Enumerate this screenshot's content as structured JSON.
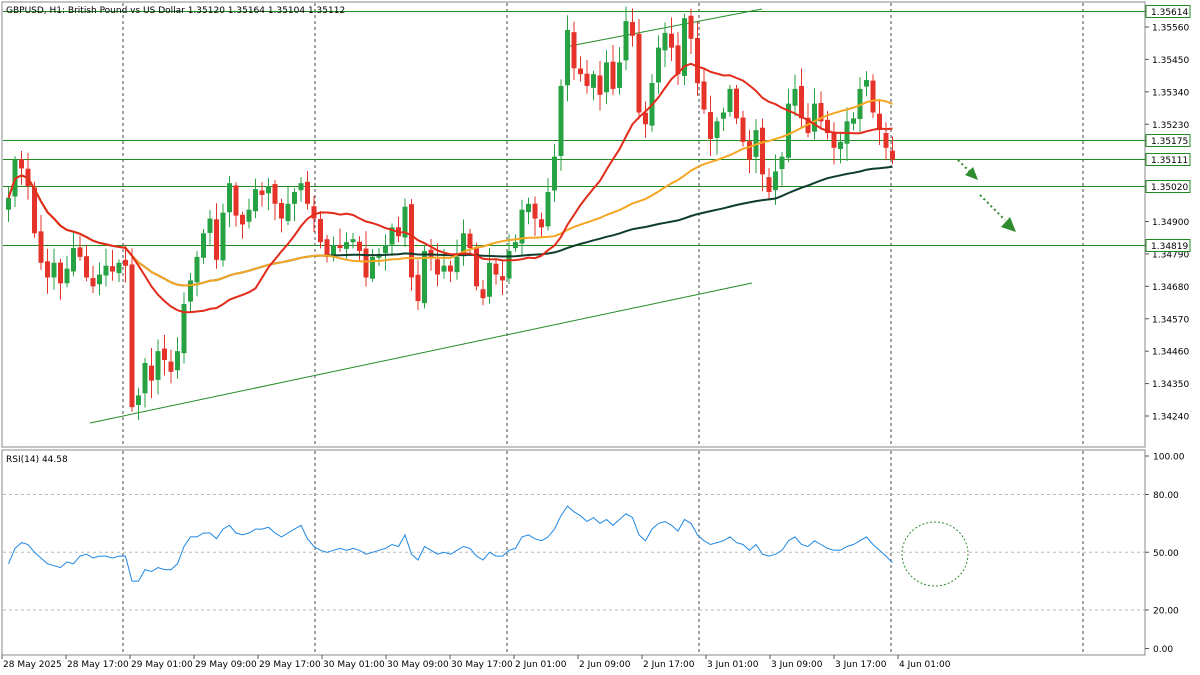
{
  "header": {
    "symbol_line": "GBPUSD, H1: British Pound vs US Dollar  1.35120 1.35164 1.35104 1.35112"
  },
  "rsi_panel": {
    "label": "RSI(14) 44.58"
  },
  "colors": {
    "bull": "#26a243",
    "bear": "#e5332a",
    "ma_fast": "#e22b1a",
    "ma_mid": "#f5a623",
    "ma_slow": "#0f3d2c",
    "rsi": "#1e88e5",
    "level_line": "#228b22",
    "grid": "#444444"
  },
  "chart_data": [
    {
      "type": "candlestick",
      "symbol": "GBPUSD",
      "timeframe": "H1",
      "y_axis_ticks": [
        "1.35560",
        "1.35450",
        "1.35340",
        "1.35230",
        "1.35010",
        "1.34900",
        "1.34790",
        "1.34680",
        "1.34570",
        "1.34460",
        "1.34350",
        "1.34240"
      ],
      "ylim": [
        1.342,
        1.3563
      ],
      "x_axis_labels": [
        "28 May 2025",
        "28 May 17:00",
        "29 May 01:00",
        "29 May 09:00",
        "29 May 17:00",
        "30 May 01:00",
        "30 May 09:00",
        "30 May 17:00",
        "2 Jun 01:00",
        "2 Jun 09:00",
        "2 Jun 17:00",
        "3 Jun 01:00",
        "3 Jun 09:00",
        "3 Jun 17:00",
        "4 Jun 01:00"
      ],
      "price_levels": [
        {
          "label": "1.35614",
          "value": 1.35614
        },
        {
          "label": "1.35175",
          "value": 1.35175
        },
        {
          "label": "1.35111",
          "value": 1.35111
        },
        {
          "label": "1.35020",
          "value": 1.3502
        },
        {
          "label": "1.34819",
          "value": 1.34819
        }
      ],
      "closes": [
        1.3498,
        1.3511,
        1.3508,
        1.3502,
        1.3486,
        1.3476,
        1.3471,
        1.3476,
        1.3469,
        1.3474,
        1.3481,
        1.3478,
        1.3471,
        1.3468,
        1.3472,
        1.3475,
        1.3473,
        1.3476,
        1.3475,
        1.3427,
        1.3431,
        1.3442,
        1.3436,
        1.3446,
        1.3443,
        1.3439,
        1.3446,
        1.3462,
        1.347,
        1.3478,
        1.3486,
        1.3491,
        1.3477,
        1.3493,
        1.3503,
        1.3492,
        1.3489,
        1.3494,
        1.3501,
        1.3499,
        1.3502,
        1.3496,
        1.3491,
        1.3496,
        1.35,
        1.3503,
        1.3496,
        1.3491,
        1.3483,
        1.3478,
        1.3482,
        1.3481,
        1.3483,
        1.3484,
        1.348,
        1.3471,
        1.3478,
        1.3479,
        1.3482,
        1.3488,
        1.3485,
        1.3495,
        1.3471,
        1.3463,
        1.348,
        1.3478,
        1.3472,
        1.3475,
        1.3473,
        1.3478,
        1.3486,
        1.3481,
        1.3468,
        1.3464,
        1.3476,
        1.3472,
        1.347,
        1.348,
        1.3483,
        1.3494,
        1.3496,
        1.3491,
        1.3488,
        1.35,
        1.3512,
        1.3536,
        1.3555,
        1.3542,
        1.354,
        1.3536,
        1.354,
        1.3533,
        1.3544,
        1.3535,
        1.3544,
        1.3558,
        1.3553,
        1.3527,
        1.3523,
        1.3537,
        1.3549,
        1.3554,
        1.3549,
        1.354,
        1.3559,
        1.3552,
        1.3537,
        1.3528,
        1.3518,
        1.3524,
        1.3527,
        1.3535,
        1.3525,
        1.3517,
        1.3511,
        1.3521,
        1.3506,
        1.35,
        1.3507,
        1.3512,
        1.353,
        1.3535,
        1.3525,
        1.352,
        1.353,
        1.3524,
        1.352,
        1.3515,
        1.3517,
        1.3524,
        1.3525,
        1.3535,
        1.3538,
        1.3527,
        1.3521,
        1.3515,
        1.3511
      ]
    },
    {
      "type": "line",
      "title": "RSI(14) 44.58",
      "ylim": [
        0,
        100
      ],
      "y_axis_ticks": [
        "100.00",
        "80.00",
        "50.00",
        "20.00",
        "0.00"
      ],
      "levels": [
        80,
        50,
        20
      ],
      "values": [
        44,
        52,
        55,
        54,
        50,
        47,
        44,
        43,
        42,
        45,
        44,
        48,
        49,
        47,
        48,
        48,
        47,
        48,
        48,
        35,
        35,
        41,
        40,
        42,
        41,
        41,
        44,
        53,
        58,
        58,
        60,
        60,
        57,
        62,
        64,
        60,
        59,
        60,
        62,
        62,
        63,
        60,
        58,
        60,
        62,
        64,
        57,
        53,
        51,
        50,
        51,
        52,
        51,
        52,
        51,
        49,
        50,
        51,
        52,
        54,
        53,
        59,
        49,
        46,
        53,
        51,
        49,
        50,
        49,
        51,
        53,
        52,
        48,
        46,
        50,
        48,
        48,
        51,
        52,
        58,
        59,
        57,
        56,
        58,
        62,
        69,
        74,
        71,
        69,
        66,
        68,
        65,
        67,
        64,
        67,
        70,
        68,
        59,
        56,
        62,
        65,
        66,
        64,
        61,
        67,
        65,
        59,
        56,
        54,
        55,
        56,
        58,
        55,
        54,
        51,
        54,
        49,
        48,
        49,
        51,
        56,
        58,
        54,
        53,
        56,
        54,
        52,
        51,
        51,
        53,
        54,
        56,
        58,
        54,
        51,
        48,
        44.58
      ]
    }
  ]
}
